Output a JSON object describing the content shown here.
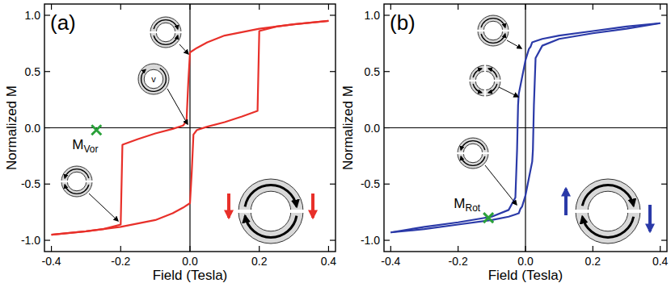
{
  "chart_data": [
    {
      "type": "line",
      "title": "(a)",
      "x_label": "Field (Tesla)",
      "y_label": "Normalized M",
      "xlim": [
        -0.42,
        0.42
      ],
      "ylim": [
        -1.1,
        1.1
      ],
      "xticks": [
        -0.4,
        -0.2,
        {
          "value": 0,
          "label": "0.0"
        },
        0.2,
        0.4
      ],
      "yticks": [
        {
          "value": -1,
          "label": "-1.0"
        },
        -0.5,
        {
          "value": 0,
          "label": "0.0"
        },
        0.5,
        {
          "value": 1,
          "label": "1.0"
        }
      ],
      "series": [
        {
          "color": "#e8302a",
          "x": [
            0.4,
            0.3,
            0.2,
            0.1,
            0.05,
            0.02,
            0.0,
            -0.005,
            -0.01,
            -0.02,
            -0.05,
            -0.1,
            -0.15,
            -0.195,
            -0.2,
            -0.25,
            -0.3,
            -0.4
          ],
          "values": [
            0.95,
            0.92,
            0.88,
            0.82,
            0.76,
            0.71,
            0.67,
            0.4,
            0.06,
            0.02,
            -0.01,
            -0.05,
            -0.1,
            -0.15,
            -0.86,
            -0.9,
            -0.92,
            -0.95
          ]
        },
        {
          "color": "#e8302a",
          "x": [
            -0.4,
            -0.3,
            -0.2,
            -0.1,
            -0.05,
            -0.02,
            0.0,
            0.005,
            0.01,
            0.02,
            0.05,
            0.1,
            0.15,
            0.195,
            0.2,
            0.25,
            0.3,
            0.4
          ],
          "values": [
            -0.95,
            -0.92,
            -0.88,
            -0.82,
            -0.76,
            -0.71,
            -0.67,
            -0.4,
            -0.06,
            -0.02,
            0.01,
            0.05,
            0.1,
            0.15,
            0.86,
            0.9,
            0.92,
            0.95
          ]
        }
      ],
      "annotations": [
        {
          "text": "M",
          "subscript": "Vor",
          "x": -0.27,
          "y": -0.02,
          "marker": "x",
          "color": "#2aa13a"
        }
      ],
      "icon_label": "v"
    },
    {
      "type": "line",
      "title": "(b)",
      "x_label": "Field (Tesla)",
      "y_label": "Normalized M",
      "xlim": [
        -0.42,
        0.42
      ],
      "ylim": [
        -1.1,
        1.1
      ],
      "xticks": [
        -0.4,
        -0.2,
        {
          "value": 0,
          "label": "0.0"
        },
        0.2,
        0.4
      ],
      "yticks": [
        {
          "value": -1,
          "label": "-1.0"
        },
        -0.5,
        {
          "value": 0,
          "label": "0.0"
        },
        0.5,
        {
          "value": 1,
          "label": "1.0"
        }
      ],
      "series": [
        {
          "color": "#2b3aa8",
          "x": [
            0.4,
            0.3,
            0.2,
            0.1,
            0.05,
            0.03,
            0.02,
            0.015,
            0.01,
            0.0,
            -0.01,
            -0.02,
            -0.022,
            -0.025,
            -0.03,
            -0.05,
            -0.1,
            -0.2,
            -0.3,
            -0.4
          ],
          "values": [
            0.93,
            0.9,
            0.86,
            0.82,
            0.79,
            0.77,
            0.76,
            0.72,
            0.7,
            0.6,
            0.45,
            0.3,
            0.2,
            -0.2,
            -0.62,
            -0.73,
            -0.79,
            -0.84,
            -0.88,
            -0.93
          ]
        },
        {
          "color": "#2b3aa8",
          "x": [
            -0.4,
            -0.3,
            -0.2,
            -0.1,
            -0.05,
            -0.03,
            -0.02,
            -0.015,
            -0.01,
            0.0,
            0.01,
            0.02,
            0.022,
            0.025,
            0.03,
            0.05,
            0.1,
            0.2,
            0.3,
            0.4
          ],
          "values": [
            -0.93,
            -0.9,
            -0.86,
            -0.82,
            -0.79,
            -0.77,
            -0.76,
            -0.72,
            -0.7,
            -0.6,
            -0.45,
            -0.3,
            -0.2,
            0.2,
            0.62,
            0.73,
            0.79,
            0.84,
            0.88,
            0.93
          ]
        }
      ],
      "annotations": [
        {
          "text": "M",
          "subscript": "Rot",
          "x": -0.11,
          "y": -0.8,
          "marker": "x",
          "color": "#2aa13a"
        }
      ]
    }
  ]
}
